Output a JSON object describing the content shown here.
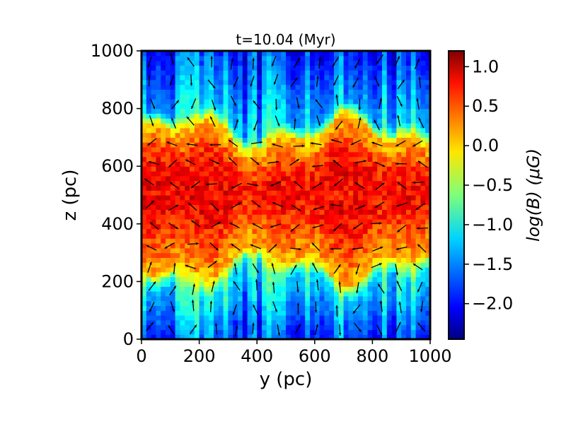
{
  "chart_data": {
    "type": "heatmap",
    "title": "t=10.04 (Myr)",
    "xlabel": "y (pc)",
    "ylabel": "z (pc)",
    "xlim": [
      0,
      1000
    ],
    "ylim": [
      0,
      1000
    ],
    "x_ticks": [
      "0",
      "200",
      "400",
      "600",
      "800",
      "1000"
    ],
    "y_ticks": [
      "0",
      "200",
      "400",
      "600",
      "800",
      "1000"
    ],
    "colorbar": {
      "label": "log(B) (μG)",
      "range": [
        -2.45,
        1.2
      ],
      "ticks": [
        "1.0",
        "0.5",
        "0.0",
        "−0.5",
        "−1.0",
        "−1.5",
        "−2.0"
      ],
      "tick_values": [
        1.0,
        0.5,
        0.0,
        -0.5,
        -1.0,
        -1.5,
        -2.0
      ],
      "colormap": "jet"
    },
    "field_profile": {
      "description_values_log_B_vs_z": [
        {
          "z": 0,
          "value": -1.7
        },
        {
          "z": 200,
          "value": -1.0
        },
        {
          "z": 260,
          "value": 0.1
        },
        {
          "z": 400,
          "value": 0.6
        },
        {
          "z": 500,
          "value": 0.8
        },
        {
          "z": 600,
          "value": 0.6
        },
        {
          "z": 700,
          "value": 0.0
        },
        {
          "z": 750,
          "value": -1.2
        },
        {
          "z": 1000,
          "value": -1.8
        }
      ]
    },
    "vectors": "magnetic field direction arrows on a regular grid"
  }
}
